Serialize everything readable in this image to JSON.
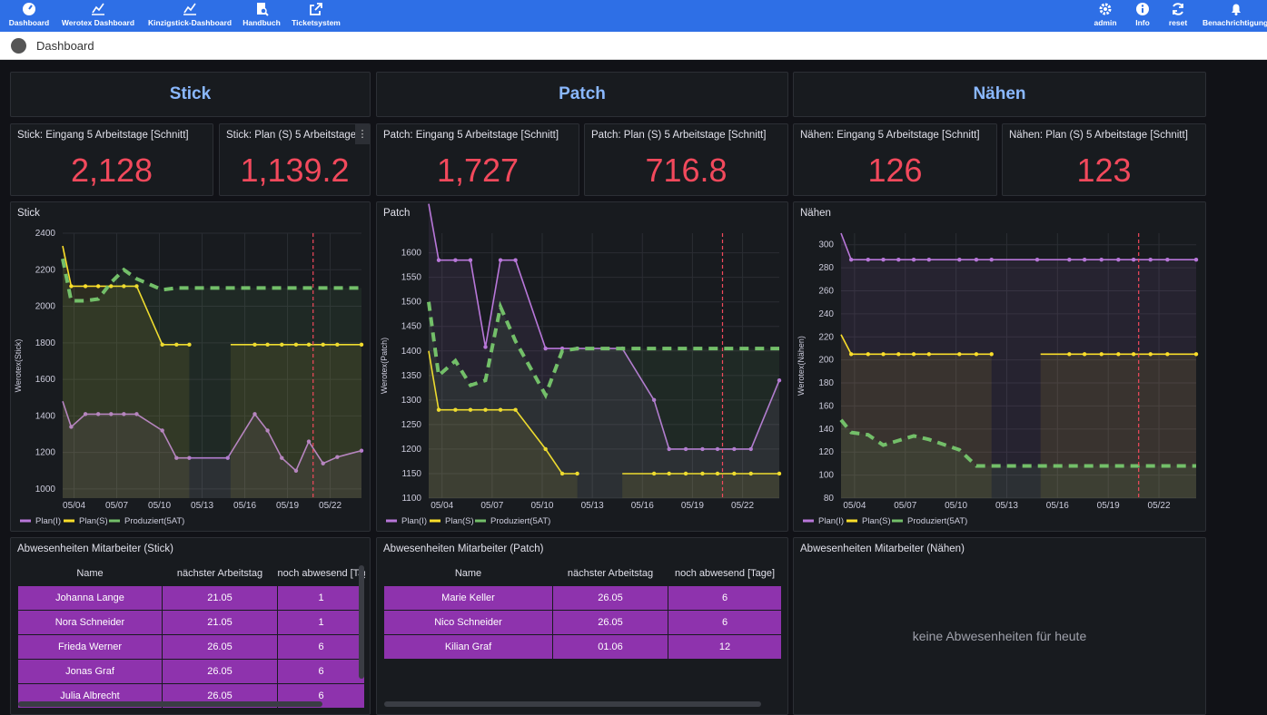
{
  "nav": {
    "left": [
      "Dashboard",
      "Werotex Dashboard",
      "Kinzigstick-Dashboard",
      "Handbuch",
      "Ticketsystem"
    ],
    "right": [
      "admin",
      "Info",
      "reset",
      "Benachrichtigungen"
    ]
  },
  "breadcrumb": "Dashboard",
  "headers": [
    "Stick",
    "Patch",
    "Nähen"
  ],
  "stats": [
    {
      "title": "Stick: Eingang 5 Arbeitstage [Schnitt]",
      "value": "2,128"
    },
    {
      "title": "Stick: Plan (S) 5 Arbeitstage [Schnitt]",
      "value": "1,139.2"
    },
    {
      "title": "Patch: Eingang 5 Arbeitstage [Schnitt]",
      "value": "1,727"
    },
    {
      "title": "Patch: Plan (S) 5 Arbeitstage [Schnitt]",
      "value": "716.8"
    },
    {
      "title": "Nähen: Eingang 5 Arbeitstage [Schnitt]",
      "value": "126"
    },
    {
      "title": "Nähen: Plan (S) 5 Arbeitstage [Schnitt]",
      "value": "123"
    }
  ],
  "colors": {
    "planI": "#b877d9",
    "planS": "#fade2a",
    "prod": "#73bf69",
    "today": "#f2495c",
    "stat": "#f2495c",
    "header": "#8ab8ff",
    "row": "#8e33ad"
  },
  "chart_data": [
    {
      "type": "line",
      "title": "Stick",
      "ylabel": "Werotex(Stick)",
      "ylim": [
        950,
        2400
      ],
      "yticks": [
        1000,
        1200,
        1400,
        1600,
        1800,
        2000,
        2200,
        2400
      ],
      "xticks": [
        "05/04",
        "05/07",
        "05/10",
        "05/13",
        "05/16",
        "05/19",
        "05/22"
      ],
      "xlim": [
        3.2,
        24.2
      ],
      "today": 20.8,
      "series": [
        {
          "name": "Plan(I)",
          "x": [
            3.2,
            3.8,
            4.8,
            5.7,
            6.6,
            7.5,
            8.4,
            10.2,
            11.2,
            12.1,
            14.8,
            16.7,
            17.6,
            18.6,
            19.6,
            20.5,
            21.5,
            22.5,
            24.2
          ],
          "values": [
            1480,
            1340,
            1410,
            1410,
            1410,
            1410,
            1410,
            1320,
            1170,
            1170,
            1170,
            1410,
            1320,
            1170,
            1100,
            1260,
            1140,
            1175,
            1210
          ]
        },
        {
          "name": "Plan(S)",
          "x": [
            3.2,
            3.8,
            4.8,
            5.7,
            6.6,
            7.5,
            8.4,
            10.2,
            11.2,
            12.1,
            null,
            15.0,
            16.7,
            17.6,
            18.6,
            19.6,
            20.5,
            21.5,
            22.5,
            24.2
          ],
          "values": [
            2330,
            2110,
            2110,
            2110,
            2110,
            2110,
            2110,
            1790,
            1790,
            1790,
            null,
            1790,
            1790,
            1790,
            1790,
            1790,
            1790,
            1790,
            1790,
            1790
          ]
        },
        {
          "name": "Produziert(5AT)",
          "x": [
            3.2,
            3.8,
            4.8,
            5.7,
            6.6,
            7.5,
            8.4,
            10.2,
            11.2,
            12.1,
            14.8,
            16.7,
            17.6,
            18.6,
            19.6,
            20.5,
            21.5,
            22.5,
            24.2
          ],
          "values": [
            2260,
            2030,
            2030,
            2040,
            2130,
            2200,
            2150,
            2090,
            2100,
            2100,
            2100,
            2100,
            2100,
            2100,
            2100,
            2100,
            2100,
            2100,
            2100
          ]
        }
      ]
    },
    {
      "type": "line",
      "title": "Patch",
      "ylabel": "Werotex(Patch)",
      "ylim": [
        1100,
        1640
      ],
      "yticks": [
        1100,
        1150,
        1200,
        1250,
        1300,
        1350,
        1400,
        1450,
        1500,
        1550,
        1600
      ],
      "xticks": [
        "05/04",
        "05/07",
        "05/10",
        "05/13",
        "05/16",
        "05/19",
        "05/22"
      ],
      "xlim": [
        3.2,
        24.2
      ],
      "today": 20.8,
      "series": [
        {
          "name": "Plan(I)",
          "x": [
            3.2,
            3.8,
            4.8,
            5.7,
            6.6,
            7.5,
            8.4,
            10.2,
            11.2,
            12.1,
            14.8,
            16.7,
            17.6,
            18.6,
            19.6,
            20.5,
            21.5,
            22.5,
            24.2
          ],
          "values": [
            1700,
            1585,
            1585,
            1585,
            1408,
            1585,
            1585,
            1405,
            1405,
            1405,
            1405,
            1300,
            1200,
            1200,
            1200,
            1200,
            1200,
            1200,
            1340
          ]
        },
        {
          "name": "Plan(S)",
          "x": [
            3.2,
            3.8,
            4.8,
            5.7,
            6.6,
            7.5,
            8.4,
            10.2,
            11.2,
            12.1,
            null,
            14.8,
            16.7,
            17.6,
            18.6,
            19.6,
            20.5,
            21.5,
            22.5,
            24.2
          ],
          "values": [
            1400,
            1280,
            1280,
            1280,
            1280,
            1280,
            1280,
            1200,
            1150,
            1150,
            null,
            1150,
            1150,
            1150,
            1150,
            1150,
            1150,
            1150,
            1150,
            1150
          ]
        },
        {
          "name": "Produziert(5AT)",
          "x": [
            3.2,
            3.8,
            4.8,
            5.7,
            6.6,
            7.5,
            8.4,
            10.2,
            11.2,
            12.1,
            14.8,
            16.7,
            17.6,
            18.6,
            19.6,
            20.5,
            21.5,
            22.5,
            24.2
          ],
          "values": [
            1500,
            1350,
            1380,
            1330,
            1340,
            1490,
            1420,
            1310,
            1400,
            1405,
            1405,
            1405,
            1405,
            1405,
            1405,
            1405,
            1405,
            1405,
            1405
          ]
        }
      ]
    },
    {
      "type": "line",
      "title": "Nähen",
      "ylabel": "Werotex(Nähen)",
      "ylim": [
        80,
        310
      ],
      "yticks": [
        80,
        100,
        120,
        140,
        160,
        180,
        200,
        220,
        240,
        260,
        280,
        300
      ],
      "xticks": [
        "05/04",
        "05/07",
        "05/10",
        "05/13",
        "05/16",
        "05/19",
        "05/22"
      ],
      "xlim": [
        3.2,
        24.2
      ],
      "today": 20.8,
      "series": [
        {
          "name": "Plan(I)",
          "x": [
            3.2,
            3.8,
            4.8,
            5.7,
            6.6,
            7.5,
            8.4,
            10.2,
            11.2,
            12.1,
            14.8,
            16.7,
            17.6,
            18.6,
            19.6,
            20.5,
            21.5,
            22.5,
            24.2
          ],
          "values": [
            310,
            287,
            287,
            287,
            287,
            287,
            287,
            287,
            287,
            287,
            287,
            287,
            287,
            287,
            287,
            287,
            287,
            287,
            287
          ]
        },
        {
          "name": "Plan(S)",
          "x": [
            3.2,
            3.8,
            4.8,
            5.7,
            6.6,
            7.5,
            8.4,
            10.2,
            11.2,
            12.1,
            null,
            15.0,
            16.7,
            17.6,
            18.6,
            19.6,
            20.5,
            21.5,
            22.5,
            24.2
          ],
          "values": [
            222,
            205,
            205,
            205,
            205,
            205,
            205,
            205,
            205,
            205,
            null,
            205,
            205,
            205,
            205,
            205,
            205,
            205,
            205,
            205
          ]
        },
        {
          "name": "Produziert(5AT)",
          "x": [
            3.2,
            3.8,
            4.8,
            5.7,
            6.6,
            7.5,
            8.4,
            10.2,
            11.2,
            12.1,
            14.8,
            16.7,
            17.6,
            18.6,
            19.6,
            20.5,
            21.5,
            22.5,
            24.2
          ],
          "values": [
            148,
            137,
            135,
            126,
            130,
            134,
            131,
            122,
            108,
            108,
            108,
            108,
            108,
            108,
            108,
            108,
            108,
            108,
            108
          ]
        }
      ]
    }
  ],
  "absence": [
    {
      "title": "Abwesenheiten Mitarbeiter (Stick)",
      "cols": [
        "Name",
        "nächster Arbeitstag",
        "noch abwesend [Tage]"
      ],
      "rows": [
        [
          "Johanna Lange",
          "21.05",
          "1"
        ],
        [
          "Nora Schneider",
          "21.05",
          "1"
        ],
        [
          "Frieda Werner",
          "26.05",
          "6"
        ],
        [
          "Jonas Graf",
          "26.05",
          "6"
        ],
        [
          "Julia Albrecht",
          "26.05",
          "6"
        ]
      ]
    },
    {
      "title": "Abwesenheiten Mitarbeiter (Patch)",
      "cols": [
        "Name",
        "nächster Arbeitstag",
        "noch abwesend [Tage]"
      ],
      "rows": [
        [
          "Marie Keller",
          "26.05",
          "6"
        ],
        [
          "Nico Schneider",
          "26.05",
          "6"
        ],
        [
          "Kilian Graf",
          "01.06",
          "12"
        ]
      ]
    },
    {
      "title": "Abwesenheiten Mitarbeiter (Nähen)",
      "empty": "keine Abwesenheiten für heute"
    }
  ]
}
